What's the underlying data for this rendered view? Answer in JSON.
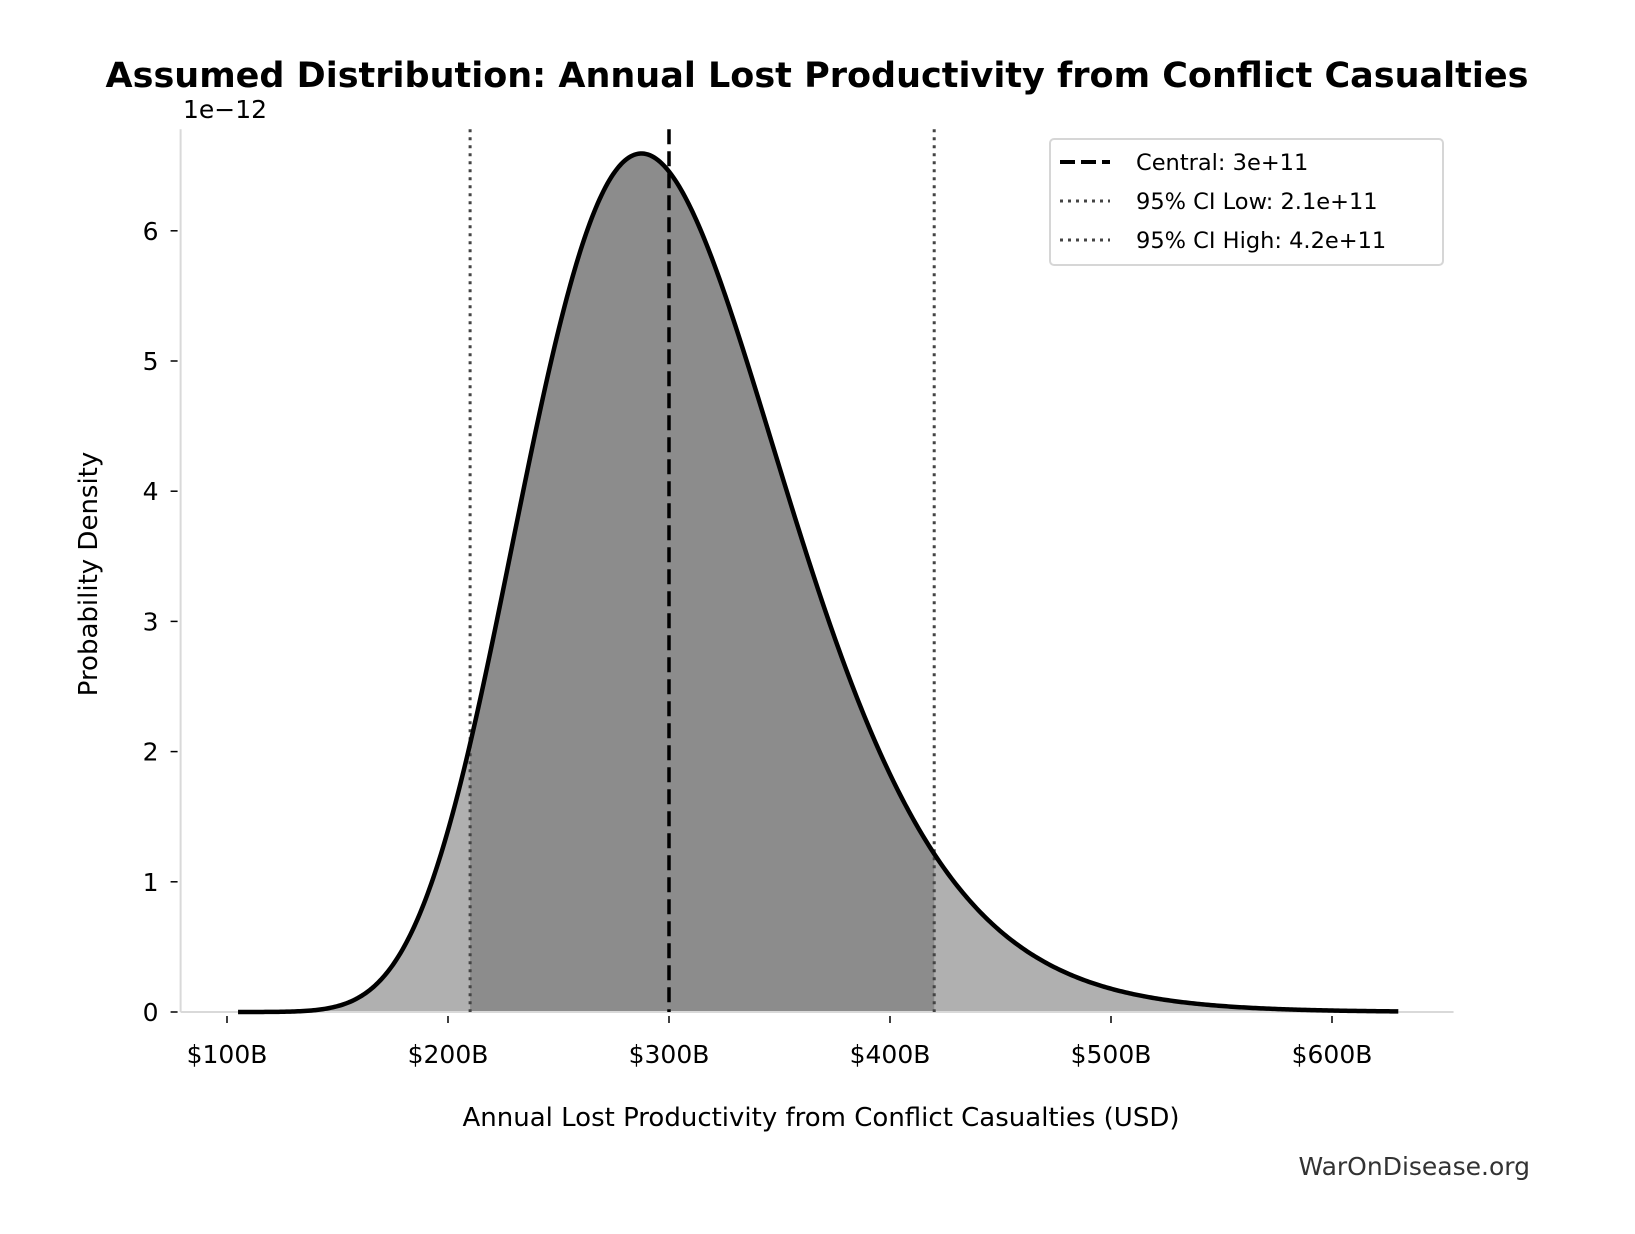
{
  "chart_data": {
    "type": "area",
    "title": "Assumed Distribution: Annual Lost Productivity from Conflict Casualties",
    "xlabel": "Annual Lost Productivity from Conflict Casualties (USD)",
    "ylabel": "Probability Density",
    "y_offset_label": "1e−12",
    "distribution": {
      "family": "lognormal",
      "median": 300000000000.0,
      "sigma": 0.206,
      "x_range": [
        105000000000.0,
        630000000000.0
      ]
    },
    "peak": {
      "x": 287000000000.0,
      "y": 6.45e-12
    },
    "xlim": [
      79000000000.0,
      655000000000.0
    ],
    "ylim": [
      0,
      6.78e-12
    ],
    "xticks": [
      100000000000.0,
      200000000000.0,
      300000000000.0,
      400000000000.0,
      500000000000.0,
      600000000000.0
    ],
    "xtick_labels": [
      "$100B",
      "$200B",
      "$300B",
      "$400B",
      "$500B",
      "$600B"
    ],
    "yticks": [
      0,
      1e-12,
      2e-12,
      3e-12,
      4e-12,
      5e-12,
      6e-12
    ],
    "ytick_labels": [
      "0",
      "1",
      "2",
      "3",
      "4",
      "5",
      "6"
    ],
    "grid": false,
    "legend_position": "top-right",
    "reference_lines": [
      {
        "label": "Central: 3e+11",
        "x": 300000000000.0,
        "style": "dashed",
        "color": "#000000"
      },
      {
        "label": "95% CI Low: 2.1e+11",
        "x": 210000000000.0,
        "style": "dotted",
        "color": "#444444"
      },
      {
        "label": "95% CI High: 4.2e+11",
        "x": 420000000000.0,
        "style": "dotted",
        "color": "#444444"
      }
    ],
    "colors": {
      "curve": "#000000",
      "tail_fill": "#b0b0b0",
      "ci_fill": "#8c8c8c",
      "spine": "#d9d9d9"
    }
  },
  "watermark": "WarOnDisease.org"
}
